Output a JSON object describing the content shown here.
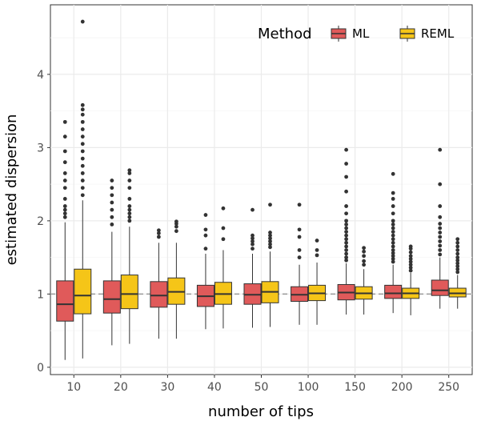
{
  "chart_data": {
    "type": "boxplot",
    "xlabel": "number of tips",
    "ylabel": "estimated dispersion",
    "categories": [
      "10",
      "20",
      "30",
      "40",
      "50",
      "100",
      "150",
      "200",
      "250"
    ],
    "ylim": [
      -0.1,
      4.95
    ],
    "yticks": [
      "0",
      "1",
      "2",
      "3",
      "4"
    ],
    "reference_line": 1,
    "grid": true,
    "legend": {
      "title": "Method",
      "placement": "top-right",
      "items": [
        {
          "label": "ML",
          "color": "#E05A5A"
        },
        {
          "label": "REML",
          "color": "#F5C518"
        }
      ]
    },
    "series": [
      {
        "name": "ML",
        "color": "#E05A5A",
        "boxes": [
          {
            "low": 0.1,
            "q1": 0.63,
            "median": 0.86,
            "q3": 1.18,
            "high": 1.98,
            "outliers": [
              2.05,
              2.1,
              2.15,
              2.2,
              2.3,
              2.45,
              2.55,
              2.65,
              2.8,
              2.95,
              3.15,
              3.35
            ]
          },
          {
            "low": 0.3,
            "q1": 0.74,
            "median": 0.93,
            "q3": 1.18,
            "high": 1.85,
            "outliers": [
              1.95,
              2.05,
              2.15,
              2.25,
              2.35,
              2.45,
              2.55
            ]
          },
          {
            "low": 0.39,
            "q1": 0.82,
            "median": 0.98,
            "q3": 1.17,
            "high": 1.7,
            "outliers": [
              1.78,
              1.83,
              1.87
            ]
          },
          {
            "low": 0.52,
            "q1": 0.83,
            "median": 0.97,
            "q3": 1.12,
            "high": 1.55,
            "outliers": [
              1.62,
              1.8,
              1.88,
              2.08
            ]
          },
          {
            "low": 0.54,
            "q1": 0.86,
            "median": 0.99,
            "q3": 1.14,
            "high": 1.55,
            "outliers": [
              1.62,
              1.68,
              1.72,
              1.76,
              1.8,
              2.15
            ]
          },
          {
            "low": 0.58,
            "q1": 0.9,
            "median": 0.99,
            "q3": 1.1,
            "high": 1.4,
            "outliers": [
              1.5,
              1.6,
              1.78,
              1.88,
              2.22
            ]
          },
          {
            "low": 0.72,
            "q1": 0.92,
            "median": 1.02,
            "q3": 1.13,
            "high": 1.42,
            "outliers": [
              1.46,
              1.5,
              1.55,
              1.6,
              1.65,
              1.7,
              1.75,
              1.8,
              1.85,
              1.9,
              1.95,
              2.0,
              2.1,
              2.2,
              2.4,
              2.6,
              2.78,
              2.97
            ]
          },
          {
            "low": 0.74,
            "q1": 0.94,
            "median": 1.01,
            "q3": 1.12,
            "high": 1.4,
            "outliers": [
              1.44,
              1.48,
              1.52,
              1.56,
              1.6,
              1.65,
              1.7,
              1.75,
              1.8,
              1.85,
              1.9,
              1.95,
              2.0,
              2.1,
              2.2,
              2.3,
              2.38,
              2.64
            ]
          },
          {
            "low": 0.8,
            "q1": 0.98,
            "median": 1.05,
            "q3": 1.19,
            "high": 1.5,
            "outliers": [
              1.54,
              1.6,
              1.66,
              1.72,
              1.78,
              1.84,
              1.9,
              1.96,
              2.05,
              2.2,
              2.5,
              2.97
            ]
          }
        ]
      },
      {
        "name": "REML",
        "color": "#F5C518",
        "boxes": [
          {
            "low": 0.12,
            "q1": 0.73,
            "median": 0.98,
            "q3": 1.34,
            "high": 2.28,
            "outliers": [
              2.35,
              2.45,
              2.55,
              2.65,
              2.75,
              2.85,
              2.95,
              3.05,
              3.15,
              3.25,
              3.35,
              3.45,
              3.52,
              3.58,
              4.72
            ]
          },
          {
            "low": 0.32,
            "q1": 0.8,
            "median": 1.0,
            "q3": 1.26,
            "high": 1.92,
            "outliers": [
              2.0,
              2.05,
              2.1,
              2.15,
              2.2,
              2.3,
              2.45,
              2.55,
              2.65,
              2.69
            ]
          },
          {
            "low": 0.39,
            "q1": 0.86,
            "median": 1.03,
            "q3": 1.22,
            "high": 1.7,
            "outliers": [
              1.86,
              1.92,
              1.96,
              1.99
            ]
          },
          {
            "low": 0.53,
            "q1": 0.86,
            "median": 1.0,
            "q3": 1.16,
            "high": 1.6,
            "outliers": [
              1.75,
              1.9,
              2.17
            ]
          },
          {
            "low": 0.55,
            "q1": 0.88,
            "median": 1.03,
            "q3": 1.17,
            "high": 1.58,
            "outliers": [
              1.64,
              1.68,
              1.72,
              1.76,
              1.8,
              1.84,
              2.22
            ]
          },
          {
            "low": 0.58,
            "q1": 0.91,
            "median": 1.01,
            "q3": 1.12,
            "high": 1.43,
            "outliers": [
              1.53,
              1.6,
              1.73
            ]
          },
          {
            "low": 0.72,
            "q1": 0.93,
            "median": 1.01,
            "q3": 1.1,
            "high": 1.34,
            "outliers": [
              1.4,
              1.45,
              1.52,
              1.58,
              1.63
            ]
          },
          {
            "low": 0.71,
            "q1": 0.94,
            "median": 1.01,
            "q3": 1.08,
            "high": 1.29,
            "outliers": [
              1.32,
              1.36,
              1.4,
              1.44,
              1.48,
              1.52,
              1.57,
              1.62,
              1.65
            ]
          },
          {
            "low": 0.8,
            "q1": 0.96,
            "median": 1.01,
            "q3": 1.08,
            "high": 1.26,
            "outliers": [
              1.3,
              1.34,
              1.38,
              1.42,
              1.46,
              1.5,
              1.55,
              1.6,
              1.65,
              1.7,
              1.75
            ]
          }
        ]
      }
    ]
  }
}
